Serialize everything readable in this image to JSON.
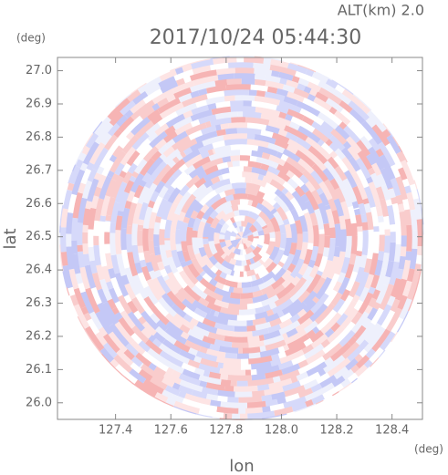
{
  "chart_data": {
    "type": "radar-field",
    "title": "2017/10/24 05:44:30",
    "subtitle": "ALT(km) 2.0",
    "x_label": "lon",
    "x_unit": "(deg)",
    "y_label": "lat",
    "y_unit": "(deg)",
    "xlim": [
      127.19,
      128.51
    ],
    "xticks": [
      127.4,
      127.6,
      127.8,
      {
        "value": 128.0,
        "label": "128.0"
      },
      128.2,
      128.4
    ],
    "ylim": [
      25.95,
      27.04
    ],
    "yticks": [
      {
        "value": 26.0,
        "label": "26.0"
      },
      26.1,
      26.2,
      26.3,
      26.4,
      26.5,
      26.6,
      26.7,
      26.8,
      26.9,
      {
        "value": 27.0,
        "label": "27.0"
      }
    ]
  }
}
